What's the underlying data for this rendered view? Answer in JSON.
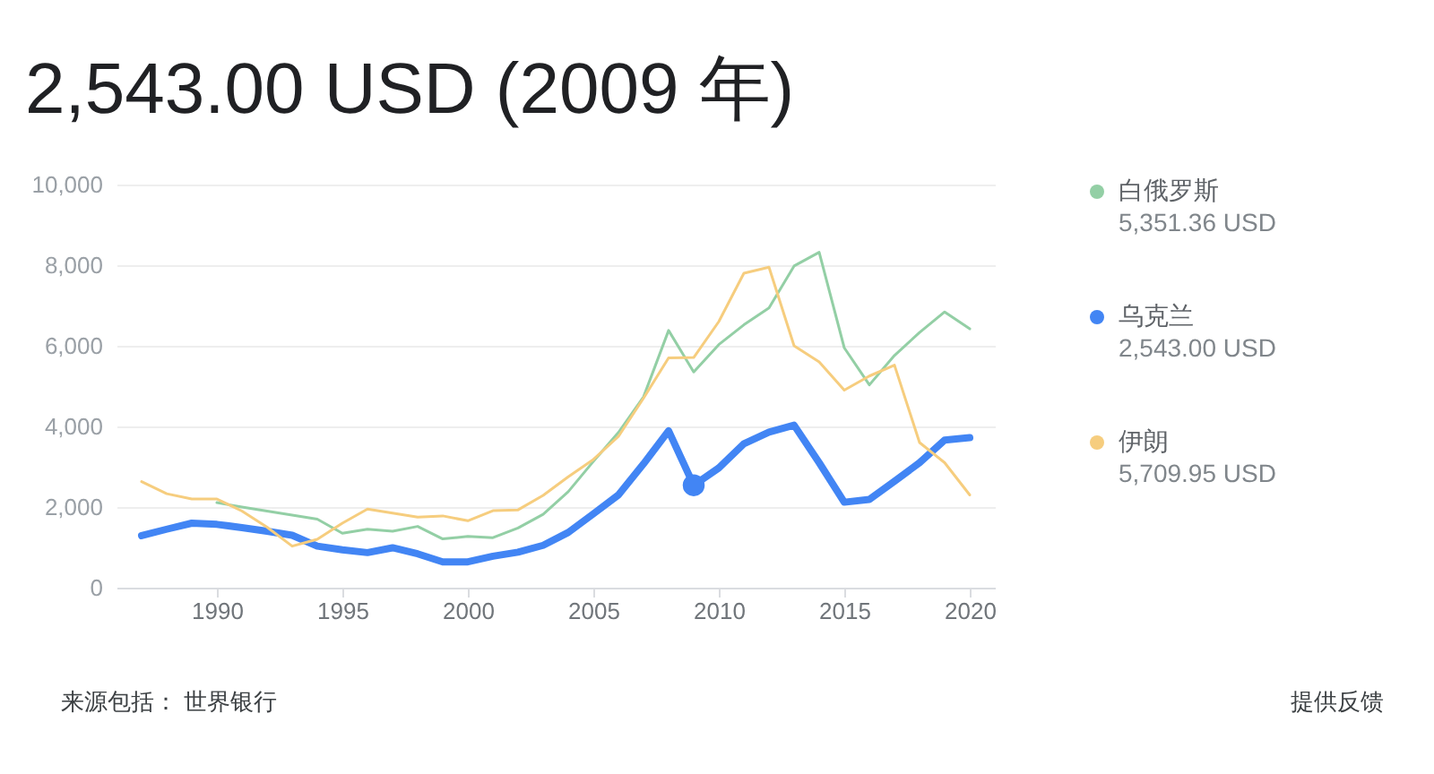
{
  "chart_data": {
    "type": "line",
    "title": "2,543.00 USD (2009 年)",
    "x": [
      1987,
      1988,
      1989,
      1990,
      1991,
      1992,
      1993,
      1994,
      1995,
      1996,
      1997,
      1998,
      1999,
      2000,
      2001,
      2002,
      2003,
      2004,
      2005,
      2006,
      2007,
      2008,
      2009,
      2010,
      2011,
      2012,
      2013,
      2014,
      2015,
      2016,
      2017,
      2018,
      2019,
      2020
    ],
    "series": [
      {
        "name": "白俄罗斯",
        "color": "#93cfa5",
        "values": [
          null,
          null,
          null,
          2110,
          2000,
          1900,
          1800,
          1700,
          1350,
          1450,
          1400,
          1520,
          1210,
          1270,
          1240,
          1480,
          1820,
          2380,
          3130,
          3850,
          4730,
          6380,
          5350,
          6030,
          6520,
          6940,
          7980,
          8320,
          5950,
          5030,
          5760,
          6330,
          6840,
          6420
        ]
      },
      {
        "name": "乌克兰",
        "color": "#4285f4",
        "values": [
          1290,
          1450,
          1600,
          1570,
          1490,
          1400,
          1300,
          1030,
          940,
          870,
          990,
          840,
          640,
          640,
          780,
          880,
          1050,
          1370,
          1830,
          2300,
          3070,
          3890,
          2540,
          2970,
          3570,
          3860,
          4030,
          3100,
          2120,
          2190,
          2640,
          3100,
          3660,
          3720
        ]
      },
      {
        "name": "伊朗",
        "color": "#f6cd7e",
        "values": [
          2630,
          2330,
          2200,
          2200,
          1900,
          1500,
          1030,
          1200,
          1600,
          1950,
          1850,
          1750,
          1780,
          1660,
          1910,
          1930,
          2290,
          2750,
          3180,
          3750,
          4700,
          5700,
          5710,
          6600,
          7800,
          7950,
          6000,
          5600,
          4900,
          5250,
          5520,
          3600,
          3100,
          2300
        ]
      },
      {
        "type": "scatter",
        "color": "#4285f4",
        "x": [
          2009
        ],
        "values": [
          2540
        ]
      }
    ],
    "xlim": [
      1986,
      2021
    ],
    "xticks": [
      1990,
      1995,
      2000,
      2005,
      2010,
      2015,
      2020
    ],
    "ylim": [
      0,
      10000
    ],
    "yticks": [
      0,
      {
        "value": 2000,
        "label": "2,000"
      },
      {
        "value": 4000,
        "label": "4,000"
      },
      {
        "value": 6000,
        "label": "6,000"
      },
      {
        "value": 8000,
        "label": "8,000"
      },
      {
        "value": 10000,
        "label": "10,000"
      }
    ],
    "grid": "y",
    "legend": "right",
    "annotations": [
      "5,351.36 USD",
      "2,543.00 USD",
      "5,709.95 USD",
      "来源包括： 世界银行",
      "提供反馈"
    ]
  }
}
